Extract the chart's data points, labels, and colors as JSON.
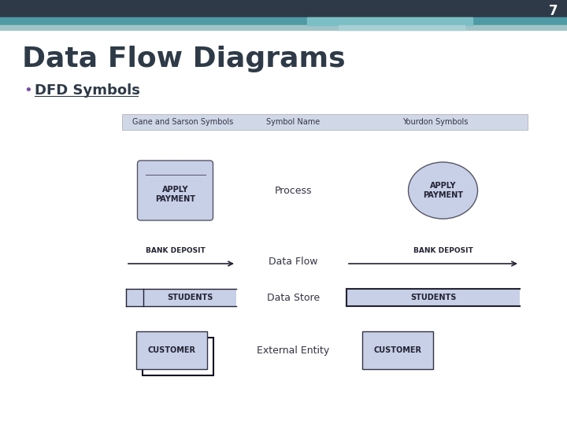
{
  "title": "Data Flow Diagrams",
  "subtitle": "DFD Symbols",
  "slide_number": "7",
  "bg_color": "#ffffff",
  "header_dark": "#2e3a47",
  "header_teal": "#4e9aa5",
  "header_light": "#a0c4c8",
  "title_color": "#2e3a47",
  "bullet_color": "#7b4fa8",
  "table_header_bg": "#d0d8e8",
  "symbol_fill": "#c8d0e8",
  "symbol_edge": "#555566",
  "table_header_text": "#333344",
  "col1_label": "Gane and Sarson Symbols",
  "col2_label": "Symbol Name",
  "col3_label": "Yourdon Symbols",
  "row1_name": "Process",
  "row2_name": "Data Flow",
  "row3_name": "Data Store",
  "row4_name": "External Entity",
  "process_label": "APPLY\nPAYMENT",
  "dataflow_label": "BANK DEPOSIT",
  "datastore_label": "STUDENTS",
  "external_label": "CUSTOMER"
}
